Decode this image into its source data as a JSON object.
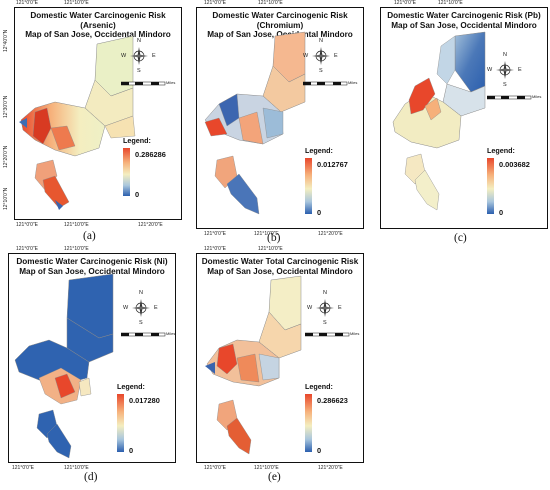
{
  "panels": [
    {
      "caption": "(a)",
      "title": "Domestic Water Carcinogenic Risk (Arsenic)\nMap of San Jose, Occidental Mindoro",
      "legend_title": "Legend:",
      "legend_max": "0.286286",
      "legend_min": "0",
      "theme": "arsenic"
    },
    {
      "caption": "(b)",
      "title": "Domestic Water Carcinogenic Risk (Chromium)\nMap of San Jose, Occidental Mindoro",
      "legend_title": "Legend:",
      "legend_max": "0.012767",
      "legend_min": "0",
      "theme": "chromium"
    },
    {
      "caption": "(c)",
      "title": "Domestic Water Carcinogenic Risk (Pb)\nMap of San Jose, Occidental Mindoro",
      "legend_title": "Legend:",
      "legend_max": "0.003682",
      "legend_min": "0",
      "theme": "pb"
    },
    {
      "caption": "(d)",
      "title": "Domestic Water Carcinogenic Risk (Ni)\nMap of San Jose, Occidental Mindoro",
      "legend_title": "Legend:",
      "legend_max": "0.017280",
      "legend_min": "0",
      "theme": "ni"
    },
    {
      "caption": "(e)",
      "title": "Domestic Water Total Carcinogenic Risk\nMap of San Jose, Occidental Mindoro",
      "legend_title": "Legend:",
      "legend_max": "0.286623",
      "legend_min": "0",
      "theme": "total"
    }
  ],
  "ticks": {
    "lon_a": "121°0'0\"E",
    "lon_b": "121°10'0\"E",
    "lon_c": "121°20'0\"E",
    "lat_1": "12°40'0\"N",
    "lat_2": "12°30'0\"N",
    "lat_3": "12°20'0\"N",
    "lat_4": "12°10'0\"N"
  },
  "compass": {
    "n": "N",
    "s": "S",
    "e": "E",
    "w": "W"
  },
  "scale": {
    "labels": [
      "0",
      "1.5",
      "3",
      "6",
      "9",
      "12"
    ],
    "unit": "Miles"
  },
  "colors": {
    "high": "#e8472b",
    "mid_high": "#f6b07a",
    "mid": "#f4eec0",
    "mid_low": "#a9c6dd",
    "low": "#2b5fae",
    "boundary": "#7a7a7a"
  }
}
